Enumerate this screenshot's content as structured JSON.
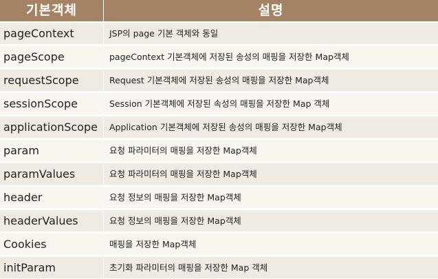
{
  "header": {
    "col1": "기본객체",
    "col2": "설명"
  },
  "rows": [
    {
      "name": "pageContext",
      "desc": "JSP의 page 기본 객체와 동일"
    },
    {
      "name": "pageScope",
      "desc": "pageContext 기본객체에 저장된 송성의 매핑을 저장한 Map객체"
    },
    {
      "name": "requestScope",
      "desc": "Request 기본객체에 저장된 송성의 매핑을 저장한 Map객체"
    },
    {
      "name": "sessionScope",
      "desc": "Session 기본객체에 저장된 속성의 매핑을 저장한 Map 객체"
    },
    {
      "name": "applicationScope",
      "desc": "Application 기본객체에 저장된 송성의 매핑을 저장한 Map객체"
    },
    {
      "name": "param",
      "desc": "요청 파라미터의 매핑을 저장한 Map객체"
    },
    {
      "name": "paramValues",
      "desc": "요청 파라미터의 매핑을 저장한 Map객체"
    },
    {
      "name": "header",
      "desc": "요청 정보의 매핑을 저장한 Map객체"
    },
    {
      "name": "headerValues",
      "desc": "요청 정보의 매핑을 저장한 Map객체"
    },
    {
      "name": "Cookies",
      "desc": "매핑을 저장한 Map객체"
    },
    {
      "name": "initParam",
      "desc": "초기화 파라미터의 매핑을 저장한 Map 객체"
    }
  ]
}
